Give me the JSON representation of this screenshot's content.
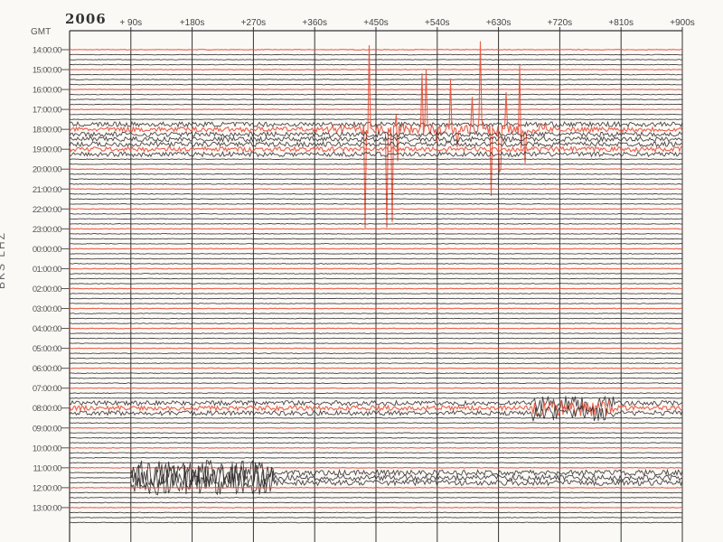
{
  "chart_data": {
    "type": "line",
    "title": "2006",
    "time_zone_label": "GMT",
    "ylabel": "BKS LHZ",
    "x_ticks": [
      "+ 90s",
      "+180s",
      "+270s",
      "+360s",
      "+450s",
      "+540s",
      "+630s",
      "+720s",
      "+810s",
      "+900s"
    ],
    "xlim_seconds": [
      0,
      900
    ],
    "y_ticks": [
      "14:00:00",
      "15:00:00",
      "16:00:00",
      "17:00:00",
      "18:00:00",
      "19:00:00",
      "20:00:00",
      "21:00:00",
      "22:00:00",
      "23:00:00",
      "00:00:00",
      "01:00:00",
      "02:00:00",
      "03:00:00",
      "04:00:00",
      "05:00:00",
      "06:00:00",
      "07:00:00",
      "08:00:00",
      "09:00:00",
      "10:00:00",
      "11:00:00",
      "12:00:00",
      "13:00:00"
    ],
    "traces_per_hour": 4,
    "hour_trace_color": "#e8503a",
    "trace_color": "#2a2626",
    "grid": true,
    "activity": [
      {
        "hours": [
          "17:45",
          "19:15"
        ],
        "seconds": [
          0,
          900
        ],
        "level": "moderate"
      },
      {
        "hours": [
          "18:00",
          "18:00"
        ],
        "seconds": [
          430,
          700
        ],
        "level": "very large",
        "color": "#e8503a"
      },
      {
        "hours": [
          "07:45",
          "08:15"
        ],
        "seconds": [
          0,
          900
        ],
        "level": "moderate",
        "peak_seconds": [
          680,
          800
        ]
      },
      {
        "hours": [
          "11:15",
          "11:45"
        ],
        "seconds": [
          90,
          900
        ],
        "level": "large",
        "peak_seconds": [
          90,
          300
        ]
      }
    ]
  }
}
